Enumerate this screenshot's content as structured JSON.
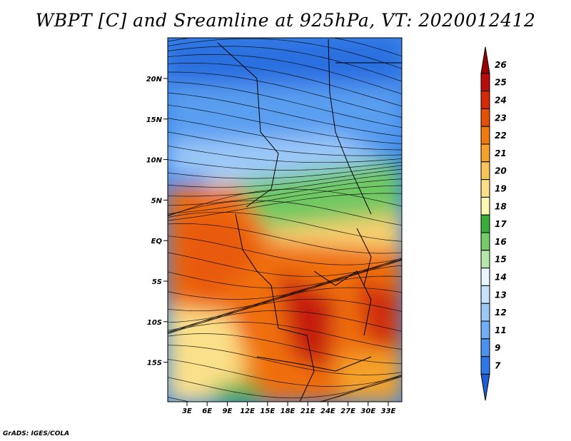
{
  "title": "WBPT [C] and Sreamline at 925hPa, VT: 2020012412",
  "credit": "GrADS: IGES/COLA",
  "lat_ticks": [
    "20N",
    "15N",
    "10N",
    "5N",
    "EQ",
    "5S",
    "10S",
    "15S"
  ],
  "lon_ticks": [
    "3E",
    "6E",
    "9E",
    "12E",
    "15E",
    "18E",
    "21E",
    "24E",
    "27E",
    "30E",
    "33E"
  ],
  "colorbar": {
    "labels": [
      "7",
      "9",
      "11",
      "12",
      "13",
      "14",
      "15",
      "16",
      "17",
      "18",
      "19",
      "20",
      "21",
      "22",
      "23",
      "24",
      "25",
      "26"
    ],
    "colors": [
      "#1e5fd8",
      "#2e78e6",
      "#4a93ee",
      "#72aef4",
      "#9cc8f8",
      "#c6e2fb",
      "#eaf6ff",
      "#b6e7a8",
      "#76cc68",
      "#3aad3a",
      "#fff8b0",
      "#fbe08a",
      "#f7c45a",
      "#f4a22c",
      "#ee7a10",
      "#e55008",
      "#d42a06",
      "#b80c0c",
      "#9a0000"
    ]
  }
}
